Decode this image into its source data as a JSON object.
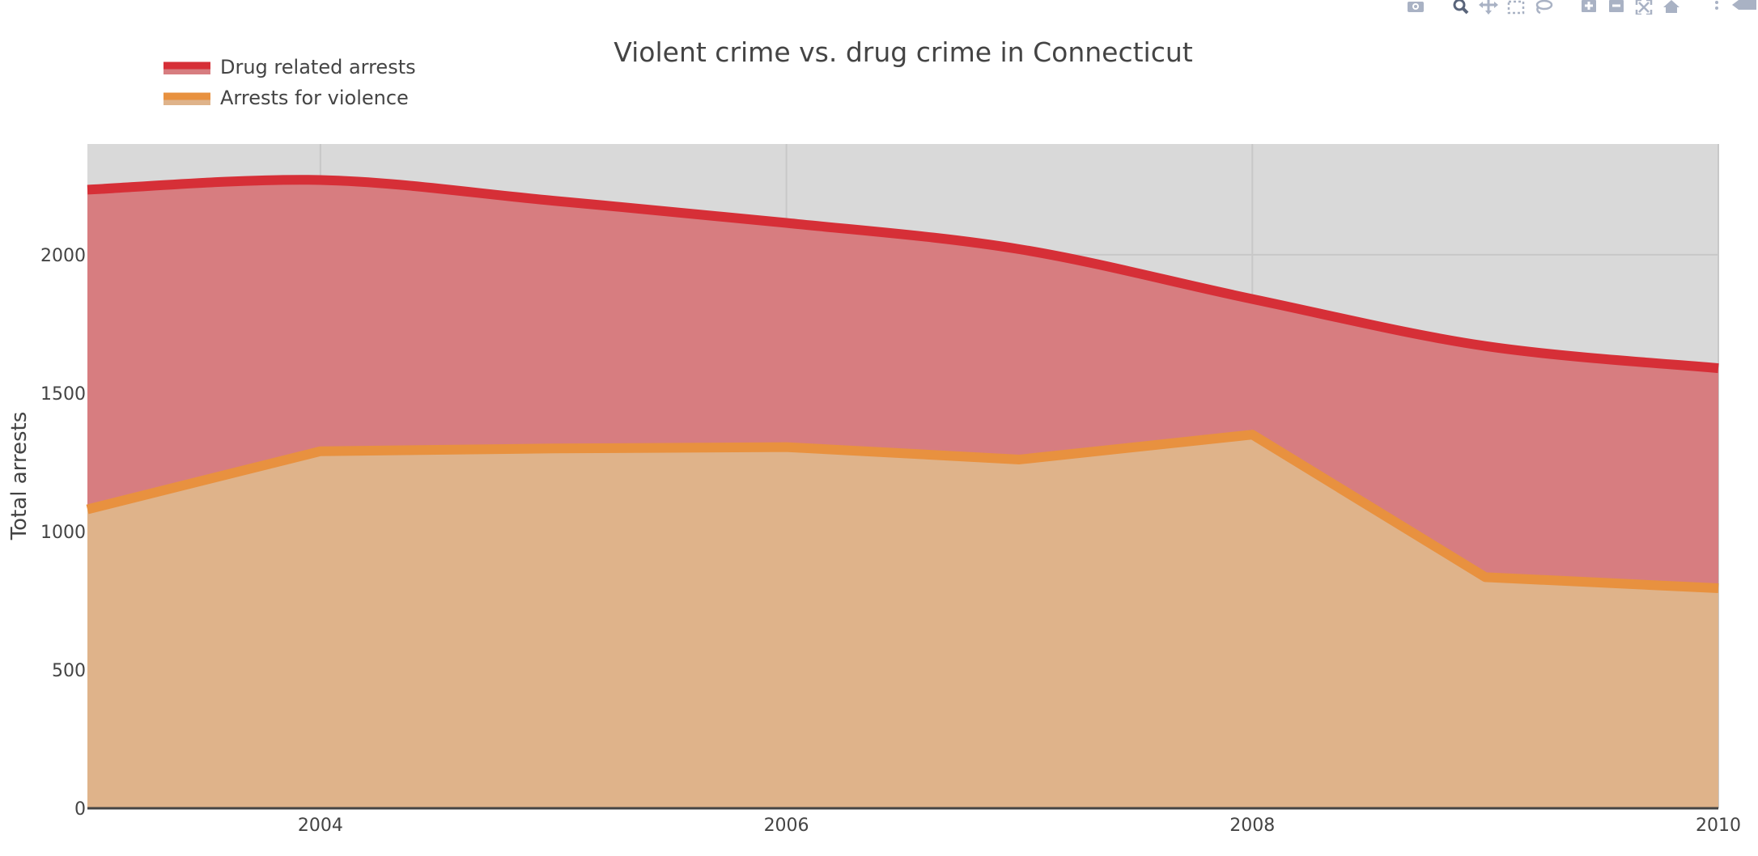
{
  "colors": {
    "background": "#ffffff",
    "plot_background": "#d9d9d9",
    "gridline": "#c8c8c8",
    "drug_line": "#d62f37",
    "drug_fill": "#d77d80",
    "violence_line": "#e8913f",
    "violence_fill": "#dfb38a",
    "text": "#444444",
    "modebar_icon": "#a9b2c4"
  },
  "modebar": {
    "icons": [
      "camera-icon",
      "zoom-icon",
      "pan-icon",
      "box-select-icon",
      "lasso-select-icon",
      "zoom-in-icon",
      "zoom-out-icon",
      "autoscale-icon",
      "reset-axes-icon",
      "spikelines-icon",
      "hover-closest-icon"
    ]
  },
  "chart_data": {
    "type": "area",
    "title": "Violent crime vs. drug crime in Connecticut",
    "xlabel": "",
    "ylabel": "Total arrests",
    "x": [
      2003,
      2004,
      2005,
      2006,
      2007,
      2008,
      2009,
      2010
    ],
    "xlim": [
      2003,
      2010
    ],
    "ylim": [
      0,
      2400
    ],
    "xticks": [
      "2004",
      "2006",
      "2008",
      "2010"
    ],
    "yticks": [
      "0",
      "500",
      "1000",
      "1500",
      "2000"
    ],
    "grid": true,
    "legend_position": "top-left",
    "series": [
      {
        "name": "Drug related arrests",
        "values": [
          2235,
          2270,
          2195,
          2115,
          2020,
          1840,
          1670,
          1590
        ],
        "line_shape": "spline",
        "color": "#d62f37"
      },
      {
        "name": "Arrests for violence",
        "values": [
          1080,
          1290,
          1300,
          1305,
          1260,
          1350,
          835,
          795
        ],
        "line_shape": "linear",
        "color": "#e8913f"
      }
    ]
  }
}
